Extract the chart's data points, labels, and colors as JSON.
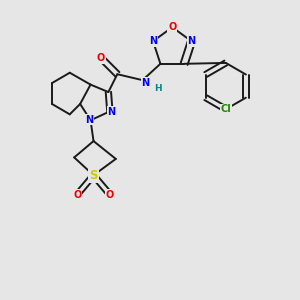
{
  "bg_color": "#e6e6e6",
  "bond_color": "#1a1a1a",
  "atom_colors": {
    "N": "#0000ee",
    "O": "#ee0000",
    "S": "#cccc00",
    "Cl": "#228800",
    "NH": "#008888",
    "C": "#1a1a1a"
  },
  "font_size": 7.0,
  "bond_lw": 1.4,
  "dbl_sep": 0.12
}
